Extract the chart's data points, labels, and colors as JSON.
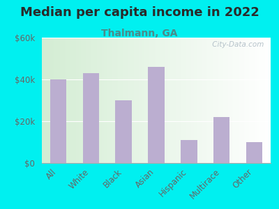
{
  "title": "Median per capita income in 2022",
  "subtitle": "Thalmann, GA",
  "categories": [
    "All",
    "White",
    "Black",
    "Asian",
    "Hispanic",
    "Multirace",
    "Other"
  ],
  "values": [
    40000,
    43000,
    30000,
    46000,
    11000,
    22000,
    10000
  ],
  "bar_color": "#bbaed0",
  "background_outer": "#00f0f0",
  "background_inner_left": "#d4edda",
  "background_inner_right": "#f5fdf5",
  "title_color": "#2a2a2a",
  "subtitle_color": "#4a8a8a",
  "tick_color": "#666666",
  "ylabel_ticks": [
    "$0",
    "$20k",
    "$40k",
    "$60k"
  ],
  "ylim": [
    0,
    60000
  ],
  "yticks": [
    0,
    20000,
    40000,
    60000
  ],
  "watermark": " City-Data.com",
  "title_fontsize": 13,
  "subtitle_fontsize": 10,
  "tick_fontsize": 8.5
}
